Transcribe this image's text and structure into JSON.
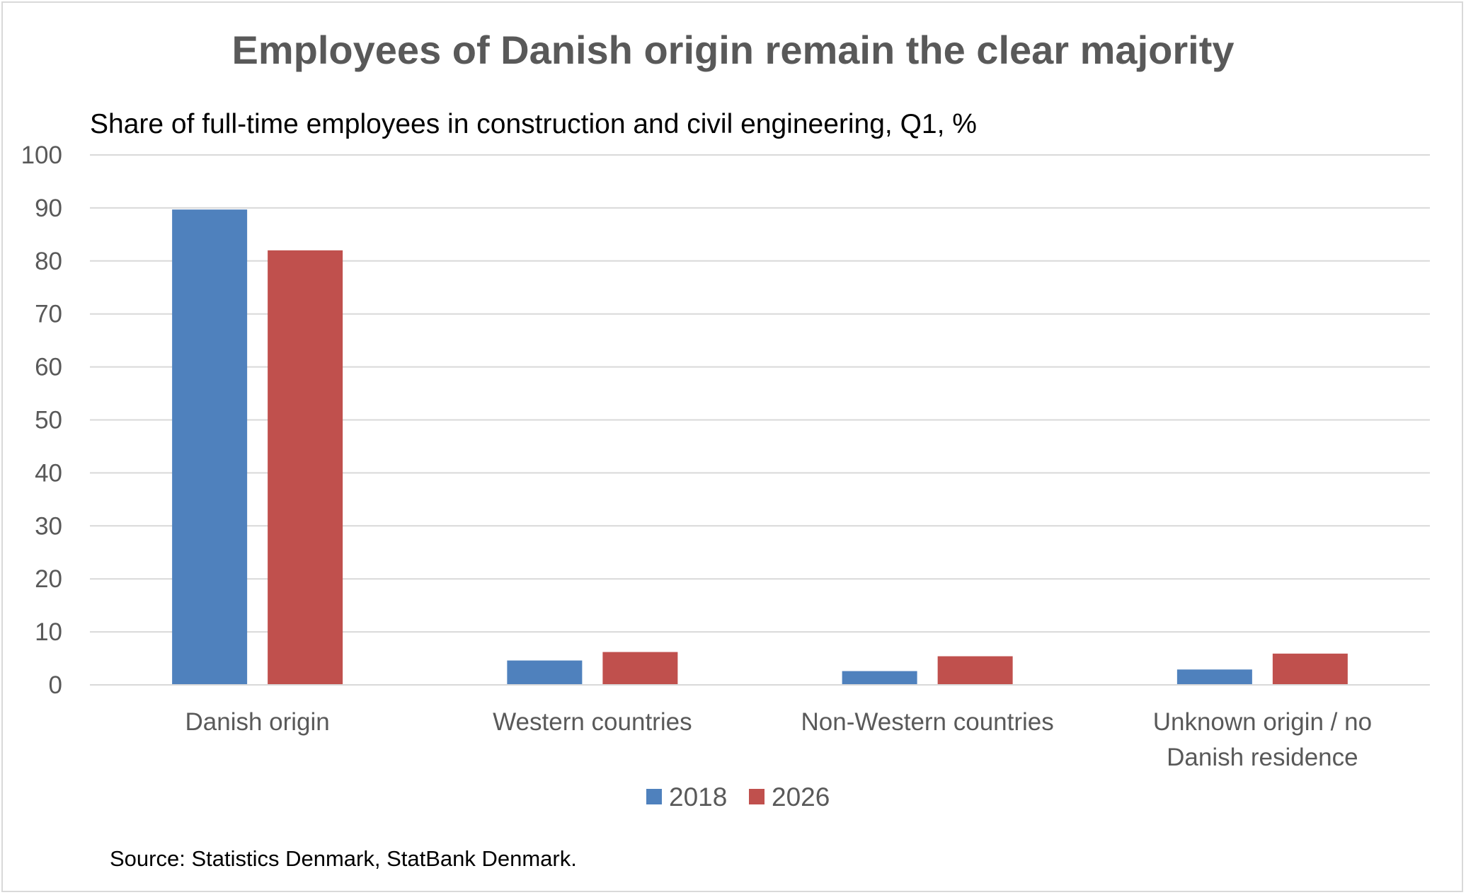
{
  "chart_data": {
    "type": "bar",
    "title": "Employees of Danish origin remain the clear majority",
    "subtitle": "Share of full-time employees in construction and civil engineering, Q1, %",
    "source": "Source: Statistics Denmark, StatBank Denmark.",
    "categories": [
      [
        "Danish origin"
      ],
      [
        "Western countries"
      ],
      [
        "Non-Western countries"
      ],
      [
        "Unknown origin / no",
        "Danish residence"
      ]
    ],
    "series": [
      {
        "name": "2018",
        "color": "#4f81bd",
        "values": [
          89.7,
          4.6,
          2.6,
          2.9
        ]
      },
      {
        "name": "2026",
        "color": "#c0504d",
        "values": [
          82.0,
          6.2,
          5.4,
          5.9
        ]
      }
    ],
    "ylim": [
      0,
      100
    ],
    "yticks": [
      "0",
      "10",
      "20",
      "30",
      "40",
      "50",
      "60",
      "70",
      "80",
      "90",
      "100"
    ],
    "grid": true,
    "legend": "bottom"
  }
}
